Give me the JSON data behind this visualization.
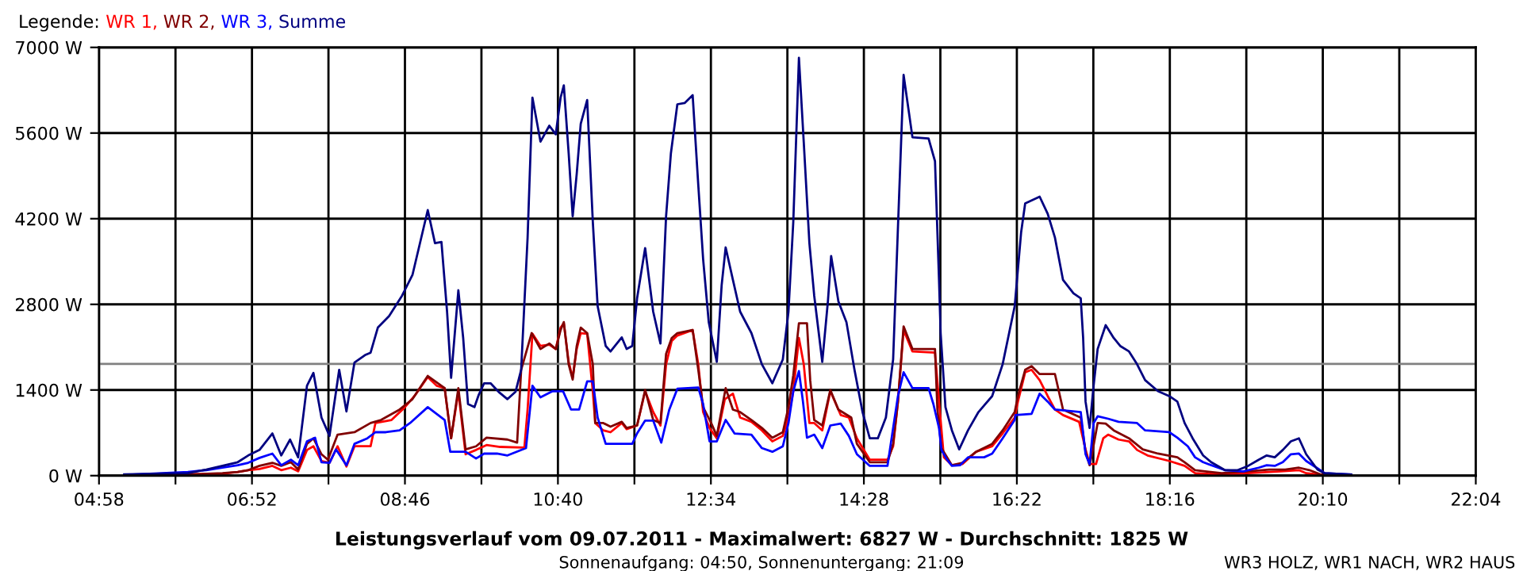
{
  "chart_data": {
    "type": "line",
    "title": "Leistungsverlauf vom 09.07.2011 - Maximalwert: 6827 W - Durchschnitt: 1825 W",
    "subtitle": "Sonnenaufgang: 04:50, Sonnenuntergang: 21:09",
    "legend_title": "Legende:",
    "legend": "top left",
    "grid": true,
    "marker": "none",
    "line_style": "solid",
    "annotations": [
      "WR3 HOLZ, WR1 NACH, WR2 HAUS"
    ],
    "xlim": [
      4.9667,
      22.0667
    ],
    "xticks": [
      {
        "value": 4.9667,
        "label": "04:58"
      },
      {
        "value": 5.9167,
        "label": null
      },
      {
        "value": 6.8667,
        "label": "06:52"
      },
      {
        "value": 7.8167,
        "label": null
      },
      {
        "value": 8.7667,
        "label": "08:46"
      },
      {
        "value": 9.7167,
        "label": null
      },
      {
        "value": 10.6667,
        "label": "10:40"
      },
      {
        "value": 11.6167,
        "label": null
      },
      {
        "value": 12.5667,
        "label": "12:34"
      },
      {
        "value": 13.5167,
        "label": null
      },
      {
        "value": 14.4667,
        "label": "14:28"
      },
      {
        "value": 15.4167,
        "label": null
      },
      {
        "value": 16.3667,
        "label": "16:22"
      },
      {
        "value": 17.3167,
        "label": null
      },
      {
        "value": 18.2667,
        "label": "18:16"
      },
      {
        "value": 19.2167,
        "label": null
      },
      {
        "value": 20.1667,
        "label": "20:10"
      },
      {
        "value": 21.1167,
        "label": null
      },
      {
        "value": 22.0667,
        "label": "22:04"
      }
    ],
    "ylim": [
      0,
      7000
    ],
    "yticks": [
      {
        "value": 0,
        "label": "0 W"
      },
      {
        "value": 1400,
        "label": "1400 W"
      },
      {
        "value": 2800,
        "label": "2800 W"
      },
      {
        "value": 4200,
        "label": "4200 W"
      },
      {
        "value": 5600,
        "label": "5600 W"
      },
      {
        "value": 7000,
        "label": "7000 W"
      }
    ],
    "ref_lines": [
      {
        "axis": "y",
        "value": 1825,
        "color": "#808080"
      }
    ],
    "series": [
      {
        "name": "WR 1,",
        "color": "#ff0000",
        "x": [
          5.28,
          6.07,
          6.5,
          6.69,
          6.82,
          6.96,
          7.12,
          7.23,
          7.35,
          7.44,
          7.55,
          7.63,
          7.73,
          7.83,
          7.93,
          8.04,
          8.14,
          8.34,
          8.4,
          8.6,
          8.76,
          8.89,
          9.05,
          9.16,
          9.26,
          9.34,
          9.43,
          9.52,
          9.65,
          9.78,
          9.95,
          10.25,
          10.29,
          10.35,
          10.45,
          10.56,
          10.64,
          10.7,
          10.74,
          10.8,
          10.85,
          10.9,
          10.95,
          11.03,
          11.1,
          11.13,
          11.23,
          11.32,
          11.46,
          11.52,
          11.65,
          11.75,
          11.85,
          11.94,
          12.01,
          12.08,
          12.15,
          12.34,
          12.41,
          12.47,
          12.55,
          12.64,
          12.74,
          12.84,
          12.93,
          13.07,
          13.2,
          13.33,
          13.46,
          13.53,
          13.59,
          13.66,
          13.72,
          13.79,
          13.85,
          13.95,
          14.05,
          14.18,
          14.28,
          14.38,
          14.54,
          14.76,
          14.83,
          14.89,
          14.96,
          15.07,
          15.35,
          15.4,
          15.46,
          15.56,
          15.69,
          15.86,
          16.06,
          16.19,
          16.34,
          16.38,
          16.47,
          16.55,
          16.65,
          16.75,
          16.84,
          16.94,
          17.14,
          17.22,
          17.27,
          17.35,
          17.44,
          17.5,
          17.63,
          17.76,
          17.86,
          17.99,
          18.26,
          18.45,
          18.58,
          18.91,
          19.24,
          19.64,
          19.87,
          19.96,
          20.1,
          20.16
        ],
        "values": [
          0,
          20,
          30,
          60,
          90,
          110,
          160,
          90,
          130,
          70,
          420,
          480,
          240,
          210,
          480,
          150,
          480,
          480,
          860,
          910,
          1110,
          1310,
          1610,
          1470,
          1430,
          610,
          1370,
          350,
          420,
          500,
          470,
          460,
          1080,
          2320,
          2120,
          2140,
          2070,
          2420,
          2490,
          1860,
          1600,
          2070,
          2330,
          2320,
          1380,
          860,
          740,
          710,
          860,
          760,
          820,
          1380,
          1040,
          820,
          1820,
          2200,
          2290,
          2380,
          1820,
          1040,
          780,
          610,
          1250,
          1340,
          950,
          880,
          740,
          560,
          650,
          950,
          1380,
          2250,
          1820,
          860,
          860,
          740,
          1380,
          990,
          950,
          610,
          260,
          260,
          480,
          1210,
          2380,
          2030,
          2010,
          1210,
          300,
          170,
          190,
          390,
          480,
          690,
          950,
          1210,
          1690,
          1730,
          1560,
          1300,
          1080,
          990,
          880,
          430,
          190,
          190,
          610,
          670,
          590,
          560,
          420,
          330,
          240,
          160,
          40,
          20,
          40,
          70,
          90,
          40,
          20,
          10
        ]
      },
      {
        "name": "WR 2,",
        "color": "#800000",
        "x": [
          5.28,
          6.07,
          6.5,
          6.69,
          6.82,
          6.96,
          7.12,
          7.23,
          7.35,
          7.44,
          7.55,
          7.63,
          7.73,
          7.81,
          7.93,
          8.14,
          8.34,
          8.47,
          8.7,
          8.86,
          9.05,
          9.26,
          9.34,
          9.43,
          9.52,
          9.65,
          9.78,
          10.04,
          10.16,
          10.21,
          10.34,
          10.45,
          10.56,
          10.64,
          10.7,
          10.74,
          10.8,
          10.85,
          10.9,
          10.95,
          11.03,
          11.1,
          11.13,
          11.23,
          11.32,
          11.46,
          11.52,
          11.65,
          11.75,
          11.85,
          11.94,
          12.01,
          12.08,
          12.15,
          12.34,
          12.41,
          12.47,
          12.57,
          12.64,
          12.75,
          12.84,
          12.93,
          13.07,
          13.2,
          13.33,
          13.46,
          13.53,
          13.59,
          13.66,
          13.76,
          13.8,
          13.85,
          13.95,
          14.05,
          14.15,
          14.31,
          14.38,
          14.54,
          14.76,
          14.83,
          14.89,
          14.96,
          15.07,
          15.35,
          15.38,
          15.43,
          15.56,
          15.69,
          15.86,
          16.06,
          16.19,
          16.34,
          16.38,
          16.47,
          16.55,
          16.65,
          16.84,
          16.94,
          17.16,
          17.22,
          17.27,
          17.3,
          17.37,
          17.47,
          17.57,
          17.67,
          17.76,
          17.93,
          18.12,
          18.36,
          18.45,
          18.58,
          18.91,
          19.24,
          19.5,
          19.7,
          19.87,
          20.0,
          20.16
        ],
        "values": [
          0,
          20,
          40,
          60,
          90,
          160,
          210,
          160,
          220,
          100,
          520,
          610,
          350,
          260,
          670,
          710,
          860,
          910,
          1080,
          1250,
          1630,
          1430,
          610,
          1430,
          430,
          480,
          620,
          590,
          540,
          1730,
          2330,
          2070,
          2160,
          2070,
          2380,
          2510,
          1820,
          1570,
          2120,
          2420,
          2330,
          1820,
          860,
          860,
          800,
          880,
          780,
          820,
          1400,
          910,
          860,
          1990,
          2250,
          2330,
          2380,
          1730,
          1120,
          860,
          650,
          1430,
          1080,
          1040,
          910,
          780,
          620,
          710,
          1120,
          1640,
          2490,
          2490,
          1560,
          910,
          820,
          1400,
          1080,
          950,
          520,
          220,
          220,
          520,
          1210,
          2440,
          2070,
          2070,
          1080,
          450,
          170,
          210,
          390,
          520,
          740,
          1040,
          1300,
          1730,
          1790,
          1660,
          1660,
          1080,
          950,
          390,
          170,
          350,
          860,
          850,
          740,
          670,
          610,
          430,
          360,
          300,
          220,
          90,
          40,
          70,
          100,
          100,
          130,
          90,
          10
        ]
      },
      {
        "name": "WR 3,",
        "color": "#0000ff",
        "x": [
          5.28,
          6.07,
          6.3,
          6.5,
          6.69,
          6.82,
          6.96,
          7.12,
          7.23,
          7.35,
          7.44,
          7.55,
          7.65,
          7.73,
          7.83,
          7.91,
          8.04,
          8.14,
          8.3,
          8.4,
          8.53,
          8.7,
          8.83,
          9.05,
          9.16,
          9.26,
          9.33,
          9.52,
          9.65,
          9.75,
          9.91,
          10.04,
          10.27,
          10.35,
          10.45,
          10.6,
          10.73,
          10.83,
          10.93,
          11.03,
          11.1,
          11.16,
          11.26,
          11.59,
          11.65,
          11.75,
          11.85,
          11.95,
          12.05,
          12.15,
          12.41,
          12.47,
          12.55,
          12.64,
          12.75,
          12.86,
          13.07,
          13.2,
          13.33,
          13.46,
          13.53,
          13.59,
          13.66,
          13.71,
          13.76,
          13.85,
          13.95,
          14.05,
          14.18,
          14.28,
          14.38,
          14.54,
          14.76,
          14.83,
          14.89,
          14.96,
          15.07,
          15.27,
          15.33,
          15.4,
          15.43,
          15.5,
          15.56,
          15.66,
          15.76,
          15.96,
          16.06,
          16.19,
          16.34,
          16.35,
          16.55,
          16.65,
          16.75,
          16.84,
          17.16,
          17.22,
          17.27,
          17.32,
          17.37,
          17.5,
          17.63,
          17.86,
          17.96,
          18.26,
          18.36,
          18.49,
          18.58,
          18.68,
          18.95,
          19.18,
          19.37,
          19.47,
          19.57,
          19.67,
          19.77,
          19.87,
          19.96,
          20.1,
          20.19,
          20.52
        ],
        "values": [
          10,
          60,
          90,
          130,
          170,
          210,
          290,
          360,
          170,
          260,
          170,
          560,
          620,
          220,
          210,
          430,
          170,
          520,
          610,
          710,
          710,
          740,
          860,
          1120,
          1010,
          910,
          390,
          390,
          280,
          360,
          360,
          330,
          450,
          1470,
          1280,
          1380,
          1380,
          1080,
          1080,
          1540,
          1540,
          950,
          520,
          520,
          690,
          900,
          900,
          540,
          1080,
          1420,
          1440,
          1170,
          560,
          560,
          910,
          690,
          670,
          450,
          390,
          480,
          860,
          1380,
          1710,
          1210,
          620,
          670,
          450,
          820,
          850,
          650,
          350,
          160,
          160,
          780,
          1300,
          1690,
          1430,
          1430,
          1170,
          780,
          420,
          260,
          160,
          170,
          300,
          300,
          360,
          610,
          910,
          990,
          1010,
          1340,
          1210,
          1080,
          1040,
          350,
          190,
          860,
          970,
          930,
          880,
          860,
          740,
          710,
          620,
          480,
          300,
          220,
          90,
          70,
          130,
          170,
          160,
          220,
          350,
          360,
          240,
          120,
          40,
          20
        ]
      },
      {
        "name": "Summe",
        "color": "#000080",
        "x": [
          5.28,
          6.07,
          6.3,
          6.5,
          6.69,
          6.82,
          6.96,
          7.12,
          7.23,
          7.34,
          7.44,
          7.55,
          7.63,
          7.73,
          7.83,
          7.95,
          8.04,
          8.14,
          8.27,
          8.34,
          8.43,
          8.57,
          8.73,
          8.86,
          9.05,
          9.14,
          9.22,
          9.29,
          9.34,
          9.43,
          9.49,
          9.55,
          9.63,
          9.68,
          9.75,
          9.83,
          9.93,
          10.04,
          10.14,
          10.21,
          10.29,
          10.35,
          10.45,
          10.56,
          10.64,
          10.7,
          10.74,
          10.8,
          10.85,
          10.9,
          10.95,
          11.03,
          11.1,
          11.16,
          11.26,
          11.32,
          11.46,
          11.52,
          11.59,
          11.65,
          11.75,
          11.85,
          11.94,
          12.01,
          12.07,
          12.15,
          12.24,
          12.34,
          12.41,
          12.47,
          12.54,
          12.64,
          12.7,
          12.75,
          12.84,
          12.93,
          13.07,
          13.2,
          13.33,
          13.46,
          13.53,
          13.59,
          13.66,
          13.72,
          13.79,
          13.85,
          13.95,
          14.02,
          14.06,
          14.15,
          14.25,
          14.35,
          14.45,
          14.54,
          14.64,
          14.74,
          14.83,
          14.89,
          14.96,
          15.07,
          15.27,
          15.35,
          15.4,
          15.42,
          15.48,
          15.56,
          15.65,
          15.76,
          15.89,
          16.06,
          16.19,
          16.34,
          16.42,
          16.47,
          16.65,
          16.75,
          16.84,
          16.94,
          17.07,
          17.16,
          17.19,
          17.22,
          17.27,
          17.32,
          17.37,
          17.47,
          17.57,
          17.65,
          17.76,
          17.86,
          17.96,
          18.12,
          18.26,
          18.36,
          18.45,
          18.55,
          18.68,
          18.78,
          18.95,
          19.11,
          19.24,
          19.37,
          19.47,
          19.57,
          19.67,
          19.77,
          19.87,
          19.96,
          20.1,
          20.19,
          20.52
        ],
        "values": [
          20,
          40,
          100,
          160,
          220,
          330,
          420,
          690,
          330,
          590,
          300,
          1470,
          1680,
          950,
          650,
          1730,
          1050,
          1850,
          1970,
          2010,
          2420,
          2610,
          2940,
          3280,
          4340,
          3800,
          3820,
          2680,
          1600,
          3030,
          2250,
          1170,
          1120,
          1310,
          1510,
          1510,
          1370,
          1250,
          1370,
          1730,
          3890,
          6180,
          5460,
          5720,
          5580,
          6180,
          6380,
          5270,
          4240,
          4930,
          5750,
          6140,
          4150,
          2770,
          2120,
          2030,
          2260,
          2070,
          2120,
          2900,
          3720,
          2680,
          2160,
          4240,
          5270,
          6070,
          6090,
          6220,
          4750,
          3540,
          2510,
          1860,
          3110,
          3730,
          3200,
          2680,
          2330,
          1820,
          1510,
          1900,
          2680,
          4150,
          6830,
          5450,
          3800,
          2940,
          1860,
          2850,
          3590,
          2850,
          2510,
          1730,
          1040,
          610,
          610,
          950,
          1900,
          4060,
          6550,
          5530,
          5510,
          5140,
          3200,
          2330,
          1120,
          740,
          430,
          740,
          1040,
          1300,
          1820,
          2770,
          3980,
          4450,
          4560,
          4280,
          3890,
          3200,
          2980,
          2900,
          2250,
          1210,
          780,
          1470,
          2070,
          2460,
          2250,
          2120,
          2030,
          1820,
          1560,
          1380,
          1300,
          1210,
          860,
          610,
          330,
          220,
          90,
          90,
          160,
          260,
          330,
          300,
          420,
          560,
          610,
          350,
          100,
          40,
          20
        ]
      }
    ]
  }
}
